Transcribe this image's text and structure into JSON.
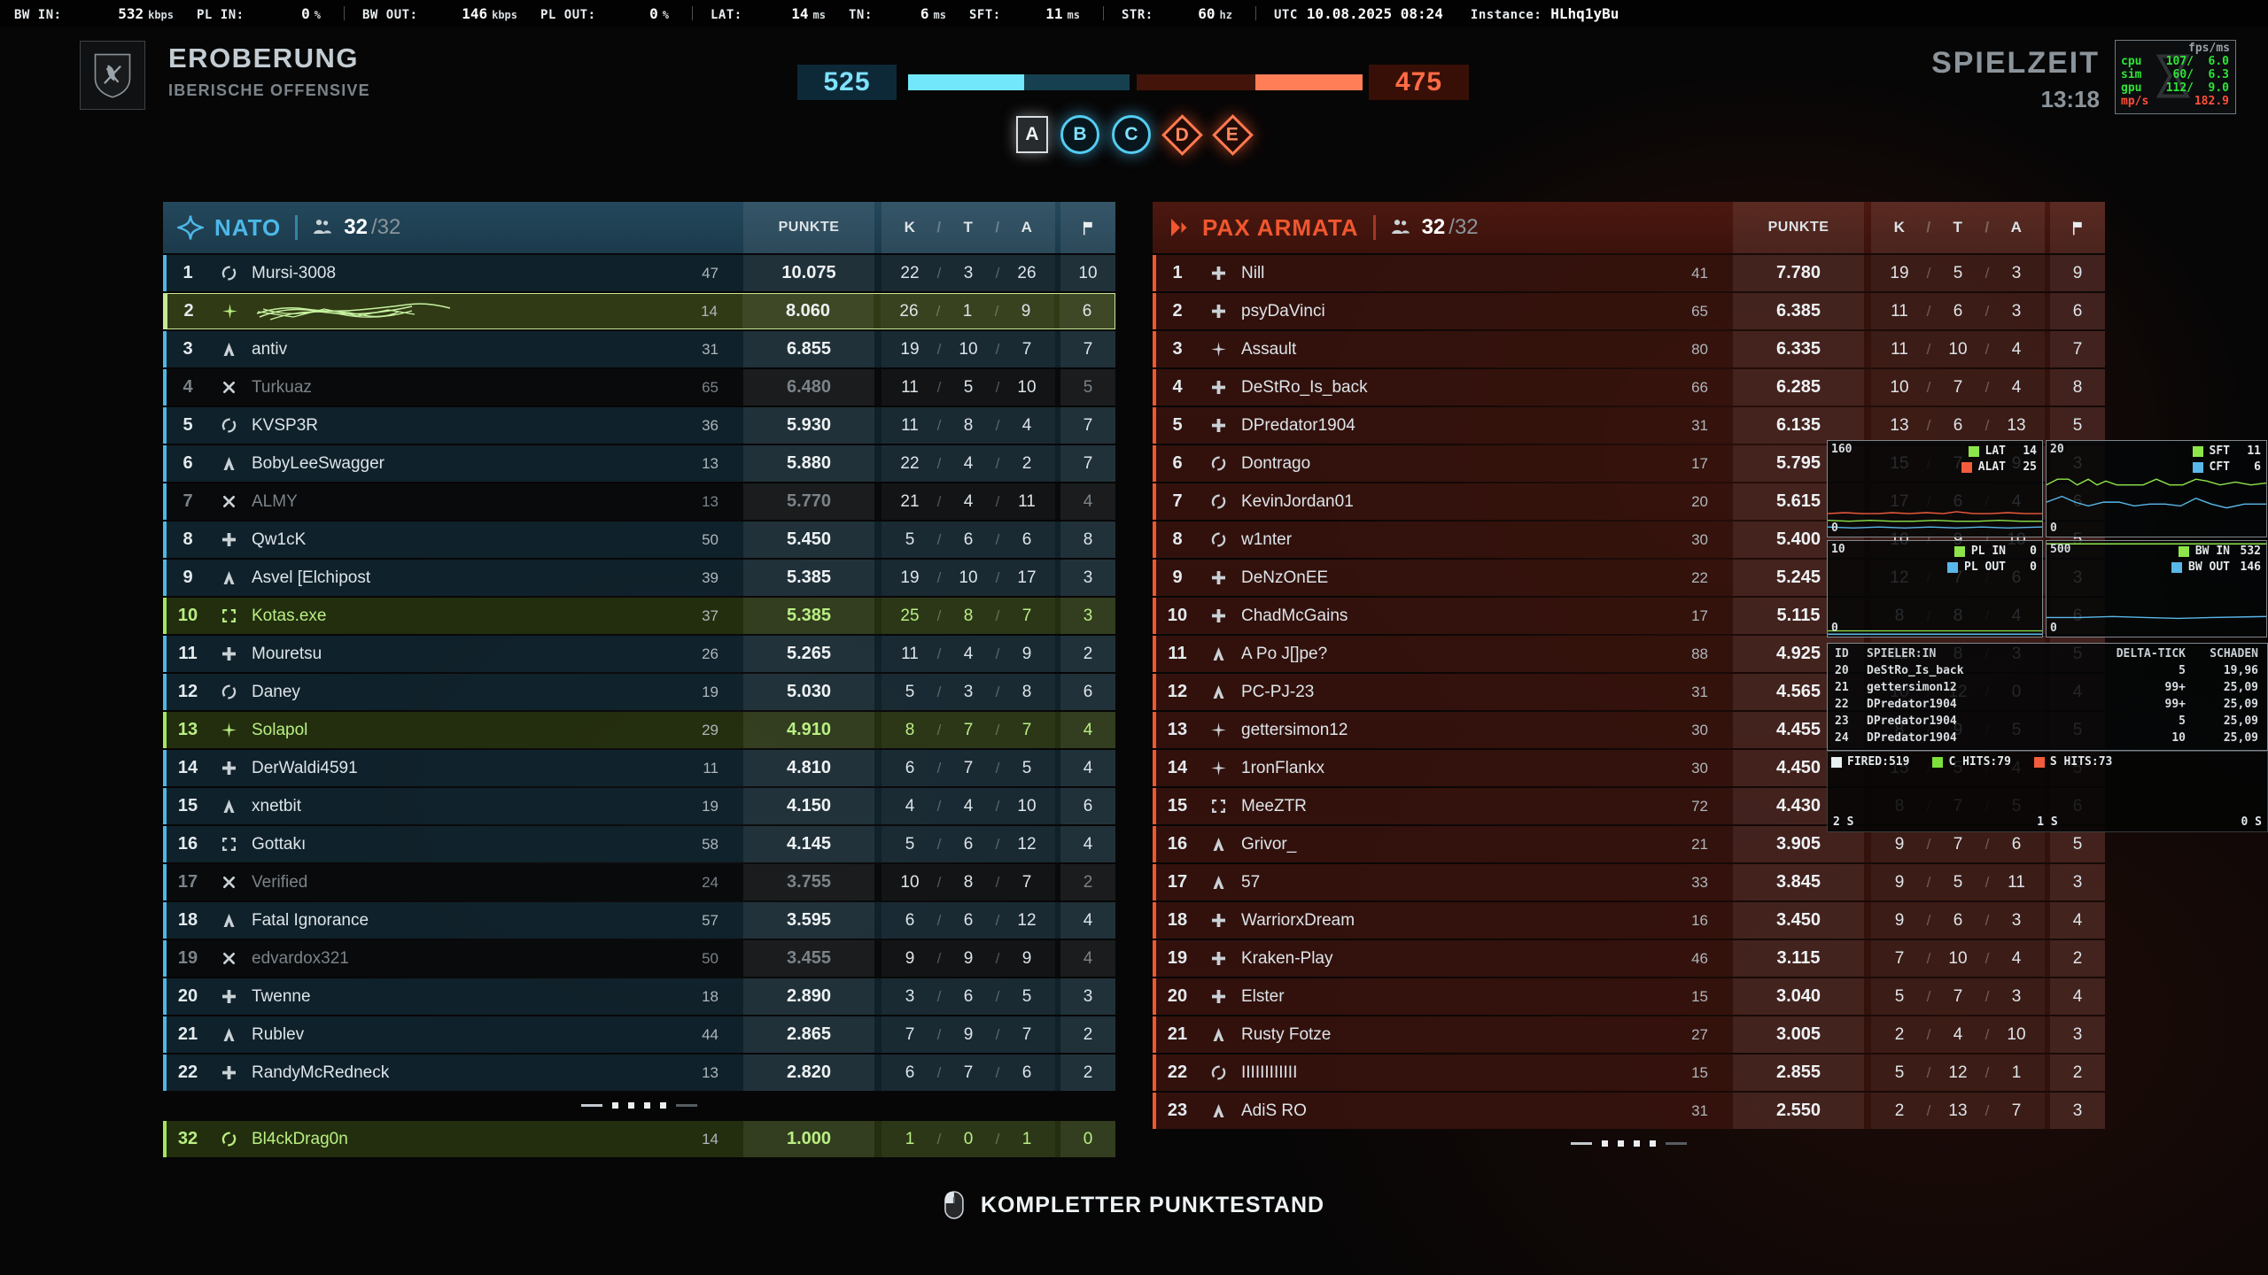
{
  "status_bar": {
    "items": [
      {
        "label": "BW IN:",
        "value": "532",
        "unit": "kbps",
        "divider_after": false
      },
      {
        "label": "PL IN:",
        "value": "0",
        "unit": "%",
        "divider_after": true
      },
      {
        "label": "BW OUT:",
        "value": "146",
        "unit": "kbps",
        "divider_after": false
      },
      {
        "label": "PL OUT:",
        "value": "0",
        "unit": "%",
        "divider_after": true
      },
      {
        "label": "LAT:",
        "value": "14",
        "unit": "ms",
        "divider_after": false
      },
      {
        "label": "TN:",
        "value": "6",
        "unit": "ms",
        "divider_after": false
      },
      {
        "label": "SFT:",
        "value": "11",
        "unit": "ms",
        "divider_after": true
      },
      {
        "label": "STR:",
        "value": "60",
        "unit": "hz",
        "divider_after": true
      },
      {
        "label": "UTC",
        "value": "10.08.2025 08:24",
        "unit": "",
        "divider_after": false,
        "plain": true
      },
      {
        "label": "Instance:",
        "value": "HLhq1yBu",
        "unit": "",
        "divider_after": false,
        "plain": true
      }
    ]
  },
  "header": {
    "mode": "EROBERUNG",
    "map": "IBERISCHE OFFENSIVE",
    "score_left": "525",
    "score_right": "475",
    "left_bar_fill": 0.525,
    "right_bar_fill": 0.475,
    "flags": [
      {
        "letter": "A",
        "shape": "square",
        "color": "neutral"
      },
      {
        "letter": "B",
        "shape": "circle",
        "color": "blue"
      },
      {
        "letter": "C",
        "shape": "circle",
        "color": "blue"
      },
      {
        "letter": "D",
        "shape": "diamond",
        "color": "orange"
      },
      {
        "letter": "E",
        "shape": "diamond",
        "color": "orange"
      }
    ],
    "playtime_label": "SPIELZEIT",
    "playtime": "13:18",
    "perf": {
      "header": "fps/ms",
      "rows": [
        {
          "name": "cpu",
          "fps": "107/",
          "ms": "6.0"
        },
        {
          "name": "sim",
          "fps": "60/",
          "ms": "6.3"
        },
        {
          "name": "gpu",
          "fps": "112/",
          "ms": "9.0"
        }
      ],
      "mps_label": "mp/s",
      "mps_value": "182.9"
    }
  },
  "columns": {
    "points": "PUNKTE",
    "k": "K",
    "t": "T",
    "a": "A"
  },
  "teams": {
    "nato": {
      "name": "NATO",
      "count": "32",
      "max": "/32",
      "accent": "#4cb8e8",
      "rows": [
        {
          "rank": "1",
          "cls": "engineer",
          "name": "Mursi-3008",
          "level": "47",
          "points": "10.075",
          "k": "22",
          "t": "3",
          "a": "26",
          "flags": "10",
          "state": "normal"
        },
        {
          "rank": "2",
          "cls": "jet",
          "name": "",
          "scribbled": true,
          "level": "14",
          "points": "8.060",
          "k": "26",
          "t": "1",
          "a": "9",
          "flags": "6",
          "state": "self"
        },
        {
          "rank": "3",
          "cls": "assault",
          "name": "antiv",
          "level": "31",
          "points": "6.855",
          "k": "19",
          "t": "10",
          "a": "7",
          "flags": "7",
          "state": "normal"
        },
        {
          "rank": "4",
          "cls": "recon",
          "name": "Turkuaz",
          "level": "65",
          "points": "6.480",
          "k": "11",
          "t": "5",
          "a": "10",
          "flags": "5",
          "state": "dead"
        },
        {
          "rank": "5",
          "cls": "engineer",
          "name": "KVSP3R",
          "level": "36",
          "points": "5.930",
          "k": "11",
          "t": "8",
          "a": "4",
          "flags": "7",
          "state": "normal"
        },
        {
          "rank": "6",
          "cls": "assault",
          "name": "BobyLeeSwagger",
          "level": "13",
          "points": "5.880",
          "k": "22",
          "t": "4",
          "a": "2",
          "flags": "7",
          "state": "normal"
        },
        {
          "rank": "7",
          "cls": "recon",
          "name": "ALMY",
          "level": "13",
          "points": "5.770",
          "k": "21",
          "t": "4",
          "a": "11",
          "flags": "4",
          "state": "dead"
        },
        {
          "rank": "8",
          "cls": "support",
          "name": "Qw1cK",
          "level": "50",
          "points": "5.450",
          "k": "5",
          "t": "6",
          "a": "6",
          "flags": "8",
          "state": "normal"
        },
        {
          "rank": "9",
          "cls": "assault",
          "name": "Asvel [Elchipost",
          "level": "39",
          "points": "5.385",
          "k": "19",
          "t": "10",
          "a": "17",
          "flags": "3",
          "state": "normal"
        },
        {
          "rank": "10",
          "cls": "squad",
          "name": "Kotas.exe",
          "level": "37",
          "points": "5.385",
          "k": "25",
          "t": "8",
          "a": "7",
          "flags": "3",
          "state": "squad"
        },
        {
          "rank": "11",
          "cls": "support",
          "name": "Mouretsu",
          "level": "26",
          "points": "5.265",
          "k": "11",
          "t": "4",
          "a": "9",
          "flags": "2",
          "state": "normal"
        },
        {
          "rank": "12",
          "cls": "engineer",
          "name": "Daney",
          "level": "19",
          "points": "5.030",
          "k": "5",
          "t": "3",
          "a": "8",
          "flags": "6",
          "state": "normal"
        },
        {
          "rank": "13",
          "cls": "jet",
          "name": "Solapol",
          "level": "29",
          "points": "4.910",
          "k": "8",
          "t": "7",
          "a": "7",
          "flags": "4",
          "state": "squad"
        },
        {
          "rank": "14",
          "cls": "support",
          "name": "DerWaldi4591",
          "level": "11",
          "points": "4.810",
          "k": "6",
          "t": "7",
          "a": "5",
          "flags": "4",
          "state": "normal"
        },
        {
          "rank": "15",
          "cls": "assault",
          "name": "xnetbit",
          "level": "19",
          "points": "4.150",
          "k": "4",
          "t": "4",
          "a": "10",
          "flags": "6",
          "state": "normal"
        },
        {
          "rank": "16",
          "cls": "squad",
          "name": "Gottakı",
          "level": "58",
          "points": "4.145",
          "k": "5",
          "t": "6",
          "a": "12",
          "flags": "4",
          "state": "normal"
        },
        {
          "rank": "17",
          "cls": "recon",
          "name": "Verified",
          "level": "24",
          "points": "3.755",
          "k": "10",
          "t": "8",
          "a": "7",
          "flags": "2",
          "state": "dead"
        },
        {
          "rank": "18",
          "cls": "assault",
          "name": "Fatal Ignorance",
          "level": "57",
          "points": "3.595",
          "k": "6",
          "t": "6",
          "a": "12",
          "flags": "4",
          "state": "normal"
        },
        {
          "rank": "19",
          "cls": "recon",
          "name": "edvardox321",
          "level": "50",
          "points": "3.455",
          "k": "9",
          "t": "9",
          "a": "9",
          "flags": "4",
          "state": "dead"
        },
        {
          "rank": "20",
          "cls": "support",
          "name": "Twenne",
          "level": "18",
          "points": "2.890",
          "k": "3",
          "t": "6",
          "a": "5",
          "flags": "3",
          "state": "normal"
        },
        {
          "rank": "21",
          "cls": "assault",
          "name": "Rublev",
          "level": "44",
          "points": "2.865",
          "k": "7",
          "t": "9",
          "a": "7",
          "flags": "2",
          "state": "normal"
        },
        {
          "rank": "22",
          "cls": "support",
          "name": "RandyMcRedneck",
          "level": "13",
          "points": "2.820",
          "k": "6",
          "t": "7",
          "a": "6",
          "flags": "2",
          "state": "normal"
        }
      ],
      "overflow_row": {
        "rank": "32",
        "cls": "engineer",
        "name": "Bl4ckDrag0n",
        "level": "14",
        "points": "1.000",
        "k": "1",
        "t": "0",
        "a": "1",
        "flags": "0",
        "state": "squad"
      }
    },
    "pax": {
      "name": "PAX ARMATA",
      "count": "32",
      "max": "/32",
      "accent": "#f0572e",
      "rows": [
        {
          "rank": "1",
          "cls": "support",
          "name": "Nill",
          "level": "41",
          "points": "7.780",
          "k": "19",
          "t": "5",
          "a": "3",
          "flags": "9",
          "state": "normal"
        },
        {
          "rank": "2",
          "cls": "support",
          "name": "psyDaVinci",
          "level": "65",
          "points": "6.385",
          "k": "11",
          "t": "6",
          "a": "3",
          "flags": "6",
          "state": "normal"
        },
        {
          "rank": "3",
          "cls": "jet",
          "name": "Assault",
          "level": "80",
          "points": "6.335",
          "k": "11",
          "t": "10",
          "a": "4",
          "flags": "7",
          "state": "normal"
        },
        {
          "rank": "4",
          "cls": "support",
          "name": "DeStRo_Is_back",
          "level": "66",
          "points": "6.285",
          "k": "10",
          "t": "7",
          "a": "4",
          "flags": "8",
          "state": "normal"
        },
        {
          "rank": "5",
          "cls": "support",
          "name": "DPredator1904",
          "level": "31",
          "points": "6.135",
          "k": "13",
          "t": "6",
          "a": "13",
          "flags": "5",
          "state": "normal"
        },
        {
          "rank": "6",
          "cls": "engineer",
          "name": "Dontrago",
          "level": "17",
          "points": "5.795",
          "k": "15",
          "t": "7",
          "a": "9",
          "flags": "3",
          "state": "normal"
        },
        {
          "rank": "7",
          "cls": "engineer",
          "name": "KevinJordan01",
          "level": "20",
          "points": "5.615",
          "k": "17",
          "t": "6",
          "a": "4",
          "flags": "6",
          "state": "normal"
        },
        {
          "rank": "8",
          "cls": "engineer",
          "name": "w1nter",
          "level": "30",
          "points": "5.400",
          "k": "10",
          "t": "9",
          "a": "10",
          "flags": "5",
          "state": "normal"
        },
        {
          "rank": "9",
          "cls": "support",
          "name": "DeNzOnEE",
          "level": "22",
          "points": "5.245",
          "k": "12",
          "t": "7",
          "a": "6",
          "flags": "3",
          "state": "normal"
        },
        {
          "rank": "10",
          "cls": "support",
          "name": "ChadMcGains",
          "level": "17",
          "points": "5.115",
          "k": "8",
          "t": "8",
          "a": "4",
          "flags": "6",
          "state": "normal"
        },
        {
          "rank": "11",
          "cls": "assault",
          "name": "A Po J[]pe?",
          "level": "88",
          "points": "4.925",
          "k": "11",
          "t": "8",
          "a": "3",
          "flags": "5",
          "state": "normal"
        },
        {
          "rank": "12",
          "cls": "assault",
          "name": "PC-PJ-23",
          "level": "31",
          "points": "4.565",
          "k": "10",
          "t": "12",
          "a": "0",
          "flags": "4",
          "state": "normal"
        },
        {
          "rank": "13",
          "cls": "jet",
          "name": "gettersimon12",
          "level": "30",
          "points": "4.455",
          "k": "8",
          "t": "9",
          "a": "5",
          "flags": "5",
          "state": "normal"
        },
        {
          "rank": "14",
          "cls": "jet",
          "name": "1ronFlankx",
          "level": "30",
          "points": "4.450",
          "k": "15",
          "t": "5",
          "a": "4",
          "flags": "5",
          "state": "normal"
        },
        {
          "rank": "15",
          "cls": "squad",
          "name": "MeeZTR",
          "level": "72",
          "points": "4.430",
          "k": "8",
          "t": "7",
          "a": "5",
          "flags": "6",
          "state": "normal"
        },
        {
          "rank": "16",
          "cls": "assault",
          "name": "Grivor_",
          "level": "21",
          "points": "3.905",
          "k": "9",
          "t": "7",
          "a": "6",
          "flags": "5",
          "state": "normal"
        },
        {
          "rank": "17",
          "cls": "assault",
          "name": "57",
          "level": "33",
          "points": "3.845",
          "k": "9",
          "t": "5",
          "a": "11",
          "flags": "3",
          "state": "normal"
        },
        {
          "rank": "18",
          "cls": "support",
          "name": "WarriorxDream",
          "level": "16",
          "points": "3.450",
          "k": "9",
          "t": "6",
          "a": "3",
          "flags": "4",
          "state": "normal"
        },
        {
          "rank": "19",
          "cls": "support",
          "name": "Kraken-Play",
          "level": "46",
          "points": "3.115",
          "k": "7",
          "t": "10",
          "a": "4",
          "flags": "2",
          "state": "normal"
        },
        {
          "rank": "20",
          "cls": "support",
          "name": "Elster",
          "level": "15",
          "points": "3.040",
          "k": "5",
          "t": "7",
          "a": "3",
          "flags": "4",
          "state": "normal"
        },
        {
          "rank": "21",
          "cls": "assault",
          "name": "Rusty Fotze",
          "level": "27",
          "points": "3.005",
          "k": "2",
          "t": "4",
          "a": "10",
          "flags": "3",
          "state": "normal"
        },
        {
          "rank": "22",
          "cls": "engineer",
          "name": "IIIIIIIIIIII",
          "level": "15",
          "points": "2.855",
          "k": "5",
          "t": "12",
          "a": "1",
          "flags": "2",
          "state": "normal"
        },
        {
          "rank": "23",
          "cls": "assault",
          "name": "AdiS RO",
          "level": "31",
          "points": "2.550",
          "k": "2",
          "t": "13",
          "a": "7",
          "flags": "3",
          "state": "normal"
        }
      ]
    }
  },
  "footer": {
    "label": "KOMPLETTER PUNKTESTAND"
  },
  "debug": {
    "graphs": [
      {
        "ymax": "160",
        "ymin": "0",
        "legend": [
          {
            "name": "LAT",
            "value": "14",
            "color": "#8ee54a"
          },
          {
            "name": "ALAT",
            "value": "25",
            "color": "#f25c3c"
          }
        ]
      },
      {
        "ymax": "20",
        "ymin": "0",
        "legend": [
          {
            "name": "SFT",
            "value": "11",
            "color": "#8ee54a"
          },
          {
            "name": "CFT",
            "value": "6",
            "color": "#59b8e8"
          }
        ]
      },
      {
        "ymax": "10",
        "ymin": "0",
        "legend": [
          {
            "name": "PL IN",
            "value": "0",
            "color": "#8ee54a"
          },
          {
            "name": "PL OUT",
            "value": "0",
            "color": "#59b8e8"
          }
        ]
      },
      {
        "ymax": "500",
        "ymin": "0",
        "legend": [
          {
            "name": "BW IN",
            "value": "532",
            "color": "#8ee54a"
          },
          {
            "name": "BW OUT",
            "value": "146",
            "color": "#59b8e8"
          }
        ]
      }
    ],
    "hit_table": {
      "headers": [
        "ID",
        "SPIELER:IN",
        "DELTA-TICK",
        "SCHADEN"
      ],
      "rows": [
        [
          "20",
          "DeStRo_Is_back",
          "5",
          "19,96"
        ],
        [
          "21",
          "gettersimon12",
          "99+",
          "25,09"
        ],
        [
          "22",
          "DPredator1904",
          "99+",
          "25,09"
        ],
        [
          "23",
          "DPredator1904",
          "5",
          "25,09"
        ],
        [
          "24",
          "DPredator1904",
          "10",
          "25,09"
        ]
      ]
    },
    "fire_panel": {
      "legend": [
        {
          "name": "FIRED:519",
          "color": "#e8f0f2"
        },
        {
          "name": "C HITS:79",
          "color": "#7ddf3a"
        },
        {
          "name": "S HITS:73",
          "color": "#f25c3c"
        }
      ],
      "axis": [
        "2 S",
        "1 S",
        "0 S"
      ]
    }
  }
}
